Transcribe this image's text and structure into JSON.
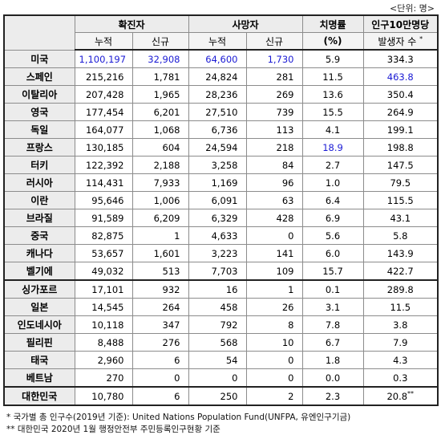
{
  "unit": "<단위: 명>",
  "header": {
    "confirmed": "확진자",
    "deaths": "사망자",
    "fatality_rate": "치명률",
    "fatality_unit": "(%)",
    "per_100k_line1": "인구10만명당",
    "per_100k_line2": "발생자 수",
    "per_100k_mark": "*",
    "cumulative": "누적",
    "new": "신규"
  },
  "rows": [
    {
      "country": "미국",
      "conf_cum": "1,100,197",
      "conf_new": "32,908",
      "death_cum": "64,600",
      "death_new": "1,730",
      "rate": "5.9",
      "per100k": "334.3"
    },
    {
      "country": "스페인",
      "conf_cum": "215,216",
      "conf_new": "1,781",
      "death_cum": "24,824",
      "death_new": "281",
      "rate": "11.5",
      "per100k": "463.8"
    },
    {
      "country": "이탈리아",
      "conf_cum": "207,428",
      "conf_new": "1,965",
      "death_cum": "28,236",
      "death_new": "269",
      "rate": "13.6",
      "per100k": "350.4"
    },
    {
      "country": "영국",
      "conf_cum": "177,454",
      "conf_new": "6,201",
      "death_cum": "27,510",
      "death_new": "739",
      "rate": "15.5",
      "per100k": "264.9"
    },
    {
      "country": "독일",
      "conf_cum": "164,077",
      "conf_new": "1,068",
      "death_cum": "6,736",
      "death_new": "113",
      "rate": "4.1",
      "per100k": "199.1"
    },
    {
      "country": "프랑스",
      "conf_cum": "130,185",
      "conf_new": "604",
      "death_cum": "24,594",
      "death_new": "218",
      "rate": "18.9",
      "per100k": "198.8"
    },
    {
      "country": "터키",
      "conf_cum": "122,392",
      "conf_new": "2,188",
      "death_cum": "3,258",
      "death_new": "84",
      "rate": "2.7",
      "per100k": "147.5"
    },
    {
      "country": "러시아",
      "conf_cum": "114,431",
      "conf_new": "7,933",
      "death_cum": "1,169",
      "death_new": "96",
      "rate": "1.0",
      "per100k": "79.5"
    },
    {
      "country": "이란",
      "conf_cum": "95,646",
      "conf_new": "1,006",
      "death_cum": "6,091",
      "death_new": "63",
      "rate": "6.4",
      "per100k": "115.5"
    },
    {
      "country": "브라질",
      "conf_cum": "91,589",
      "conf_new": "6,209",
      "death_cum": "6,329",
      "death_new": "428",
      "rate": "6.9",
      "per100k": "43.1"
    },
    {
      "country": "중국",
      "conf_cum": "82,875",
      "conf_new": "1",
      "death_cum": "4,633",
      "death_new": "0",
      "rate": "5.6",
      "per100k": "5.8"
    },
    {
      "country": "캐나다",
      "conf_cum": "53,657",
      "conf_new": "1,601",
      "death_cum": "3,223",
      "death_new": "141",
      "rate": "6.0",
      "per100k": "143.9"
    },
    {
      "country": "벨기에",
      "conf_cum": "49,032",
      "conf_new": "513",
      "death_cum": "7,703",
      "death_new": "109",
      "rate": "15.7",
      "per100k": "422.7"
    },
    {
      "country": "싱가포르",
      "conf_cum": "17,101",
      "conf_new": "932",
      "death_cum": "16",
      "death_new": "1",
      "rate": "0.1",
      "per100k": "289.8"
    },
    {
      "country": "일본",
      "conf_cum": "14,545",
      "conf_new": "264",
      "death_cum": "458",
      "death_new": "26",
      "rate": "3.1",
      "per100k": "11.5"
    },
    {
      "country": "인도네시아",
      "conf_cum": "10,118",
      "conf_new": "347",
      "death_cum": "792",
      "death_new": "8",
      "rate": "7.8",
      "per100k": "3.8"
    },
    {
      "country": "필리핀",
      "conf_cum": "8,488",
      "conf_new": "276",
      "death_cum": "568",
      "death_new": "10",
      "rate": "6.7",
      "per100k": "7.9"
    },
    {
      "country": "태국",
      "conf_cum": "2,960",
      "conf_new": "6",
      "death_cum": "54",
      "death_new": "0",
      "rate": "1.8",
      "per100k": "4.3"
    },
    {
      "country": "베트남",
      "conf_cum": "270",
      "conf_new": "0",
      "death_cum": "0",
      "death_new": "0",
      "rate": "0.0",
      "per100k": "0.3"
    },
    {
      "country": "대한민국",
      "conf_cum": "10,780",
      "conf_new": "6",
      "death_cum": "250",
      "death_new": "2",
      "rate": "2.3",
      "per100k": "20.8",
      "per100k_mark": "**"
    }
  ],
  "footnotes": [
    "* 국가별 총 인구수(2019년 기준): United Nations Population Fund(UNFPA, 유엔인구기금)",
    "** 대한민국 2020년 1월 행정안전부 주민등록인구현황 기준"
  ],
  "colors": {
    "highlight": "#1a1ad4",
    "header_bg": "#ececec"
  }
}
